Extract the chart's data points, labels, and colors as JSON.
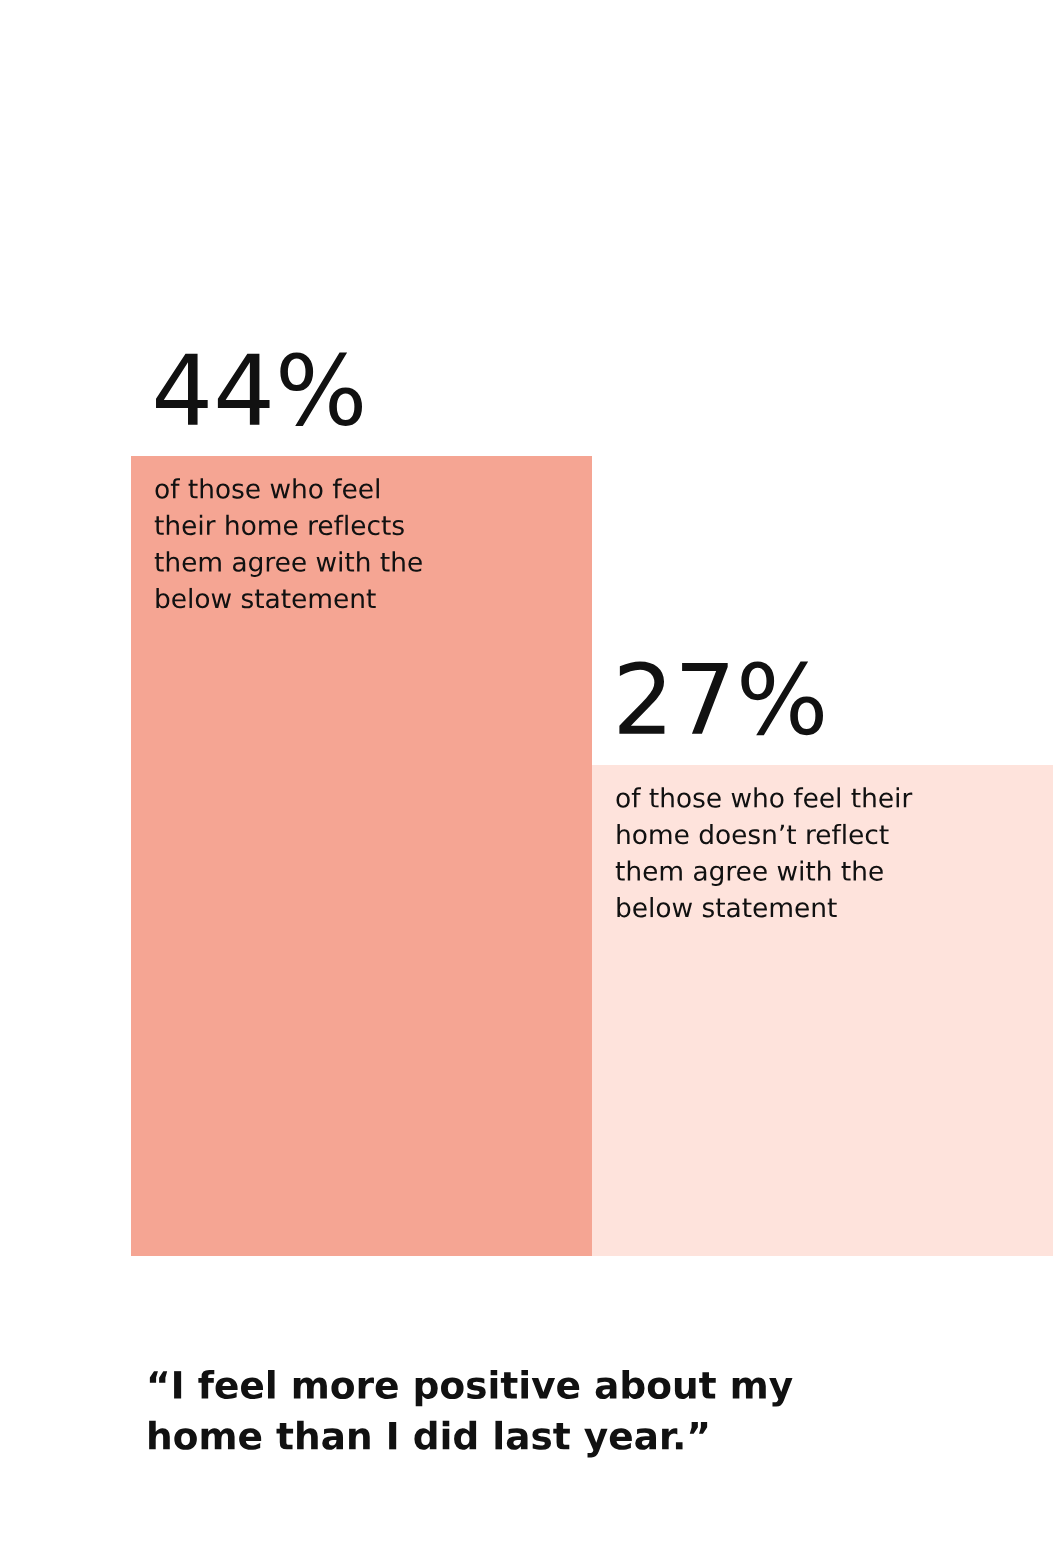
{
  "chart_data": {
    "type": "bar",
    "categories": [
      "of those who feel\ntheir home reflects\nthem agree with the\nbelow statement",
      "of those who feel their\nhome doesn’t reflect\nthem agree with the\nbelow statement"
    ],
    "values": [
      44,
      27
    ],
    "value_labels": [
      "44%",
      "27%"
    ],
    "colors": [
      "#f5a593",
      "#fee3dc"
    ],
    "legend": false,
    "annotations": [
      "“I feel more positive about my\nhome than I did last year.”"
    ]
  }
}
